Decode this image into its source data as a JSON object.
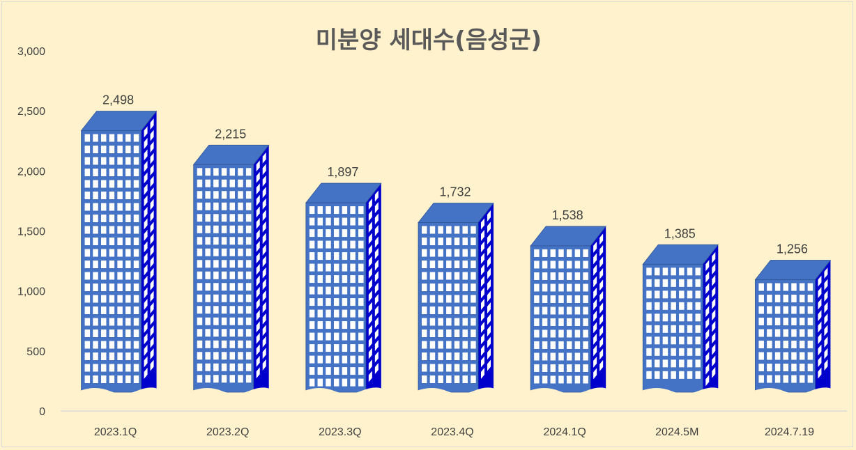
{
  "chart_data": {
    "type": "bar",
    "title": "미분양 세대수(음성군)",
    "xlabel": "",
    "ylabel": "",
    "categories": [
      "2023.1Q",
      "2023.2Q",
      "2023.3Q",
      "2023.4Q",
      "2024.1Q",
      "2024.5M",
      "2024.7.19"
    ],
    "values": [
      2498,
      2215,
      1897,
      1732,
      1538,
      1385,
      1256
    ],
    "data_labels": [
      "2,498",
      "2,215",
      "1,897",
      "1,732",
      "1,538",
      "1,385",
      "1,256"
    ],
    "ylim": [
      0,
      3000
    ],
    "yticks": [
      0,
      500,
      1000,
      1500,
      2000,
      2500,
      3000
    ],
    "ytick_labels": [
      "0",
      "500",
      "1,000",
      "1,500",
      "2,000",
      "2,500",
      "3,000"
    ],
    "grid": false,
    "legend": "none",
    "bar_style": "building-pictograph"
  },
  "colors": {
    "background": "#fff2cc",
    "bar_front": "#4472c4",
    "bar_roof": "#4472c4",
    "bar_side": "#0000cc",
    "window": "#ffffff",
    "text": "#404040",
    "title": "#595959",
    "axis": "#d9d9d9"
  }
}
